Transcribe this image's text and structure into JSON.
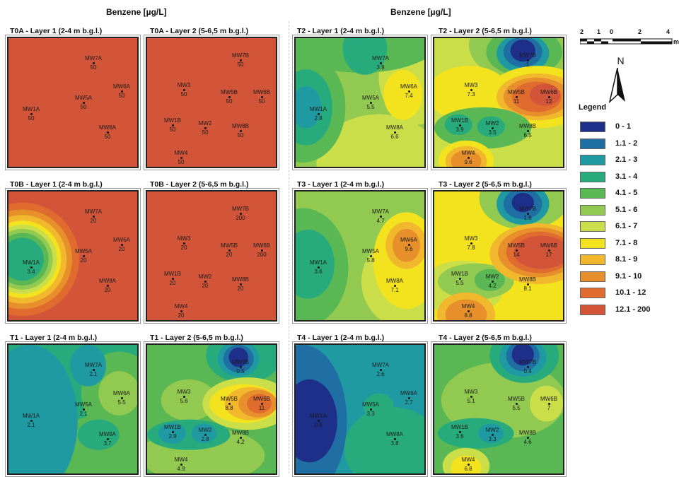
{
  "headings": {
    "left": "Benzene [µg/L]",
    "right": "Benzene [µg/L]"
  },
  "colors": {
    "c0": "#1e2f8a",
    "c1": "#1f6ea4",
    "c2": "#1f9aa3",
    "c3": "#27ab7d",
    "c4": "#59b754",
    "c5": "#92c950",
    "c6": "#cade4a",
    "c7": "#f3e21e",
    "c8": "#f2b82d",
    "c9": "#e7902b",
    "c10": "#df6b2e",
    "c11": "#d2553a"
  },
  "legend": {
    "title": "Legend",
    "items": [
      {
        "label": "0 - 1",
        "color": "#1e2f8a"
      },
      {
        "label": "1.1 - 2",
        "color": "#1f6ea4"
      },
      {
        "label": "2.1 - 3",
        "color": "#1f9aa3"
      },
      {
        "label": "3.1 - 4",
        "color": "#27ab7d"
      },
      {
        "label": "4.1 - 5",
        "color": "#59b754"
      },
      {
        "label": "5.1 - 6",
        "color": "#92c950"
      },
      {
        "label": "6.1 - 7",
        "color": "#cade4a"
      },
      {
        "label": "7.1 - 8",
        "color": "#f3e21e"
      },
      {
        "label": "8.1 - 9",
        "color": "#f2b82d"
      },
      {
        "label": "9.1 - 10",
        "color": "#e7902b"
      },
      {
        "label": "10.1 - 12",
        "color": "#df6b2e"
      },
      {
        "label": "12.1 - 200",
        "color": "#d2553a"
      }
    ]
  },
  "north": {
    "label": "N"
  },
  "scale": {
    "labels": [
      "2",
      "1",
      "0",
      "2",
      "4"
    ],
    "unit": "m"
  },
  "panels": [
    {
      "title": "T0A - Layer 1 (2-4 m b.g.l.)",
      "wells": [
        {
          "name": "MW7A",
          "value": "50"
        },
        {
          "name": "MW6A",
          "value": "50"
        },
        {
          "name": "MW5A",
          "value": "50"
        },
        {
          "name": "MW1A",
          "value": "50"
        },
        {
          "name": "MW8A",
          "value": "50"
        }
      ]
    },
    {
      "title": "T0A - Layer 2 (5-6,5 m b.g.l.)",
      "wells": [
        {
          "name": "MW7B",
          "value": "50"
        },
        {
          "name": "MW3",
          "value": "50"
        },
        {
          "name": "MW5B",
          "value": "50"
        },
        {
          "name": "MW6B",
          "value": "50"
        },
        {
          "name": "MW1B",
          "value": "50"
        },
        {
          "name": "MW2",
          "value": "50"
        },
        {
          "name": "MW8B",
          "value": "50"
        },
        {
          "name": "MW4",
          "value": "50"
        }
      ]
    },
    {
      "title": "T2 - Layer 1 (2-4 m b.g.l.)",
      "wells": [
        {
          "name": "MW7A",
          "value": "3.8"
        },
        {
          "name": "MW6A",
          "value": "7.4"
        },
        {
          "name": "MW5A",
          "value": "5.5"
        },
        {
          "name": "MW1A",
          "value": "2.8"
        },
        {
          "name": "MW8A",
          "value": "6.6"
        }
      ]
    },
    {
      "title": "T2 - Layer 2 (5-6,5 m b.g.l.)",
      "wells": [
        {
          "name": "MW7B",
          "value": "1"
        },
        {
          "name": "MW3",
          "value": "7.3"
        },
        {
          "name": "MW5B",
          "value": "11"
        },
        {
          "name": "MW6B",
          "value": "12"
        },
        {
          "name": "MW1B",
          "value": "3.9"
        },
        {
          "name": "MW2",
          "value": "3.5"
        },
        {
          "name": "MW8B",
          "value": "6.5"
        },
        {
          "name": "MW4",
          "value": "9.6"
        }
      ]
    },
    {
      "title": "T0B - Layer 1 (2-4 m b.g.l.)",
      "wells": [
        {
          "name": "MW7A",
          "value": "20"
        },
        {
          "name": "MW6A",
          "value": "20"
        },
        {
          "name": "MW5A",
          "value": "20"
        },
        {
          "name": "MW1A",
          "value": "3.4"
        },
        {
          "name": "MW8A",
          "value": "20"
        }
      ]
    },
    {
      "title": "T0B - Layer 2 (5-6,5 m b.g.l.)",
      "wells": [
        {
          "name": "MW7B",
          "value": "200"
        },
        {
          "name": "MW3",
          "value": "20"
        },
        {
          "name": "MW5B",
          "value": "20"
        },
        {
          "name": "MW6B",
          "value": "200"
        },
        {
          "name": "MW1B",
          "value": "20"
        },
        {
          "name": "MW2",
          "value": "20"
        },
        {
          "name": "MW8B",
          "value": "20"
        },
        {
          "name": "MW4",
          "value": "20"
        }
      ]
    },
    {
      "title": "T3 - Layer 1 (2-4 m b.g.l.)",
      "wells": [
        {
          "name": "MW7A",
          "value": "4.7"
        },
        {
          "name": "MW6A",
          "value": "9.6"
        },
        {
          "name": "MW5A",
          "value": "5.8"
        },
        {
          "name": "MW1A",
          "value": "3.6"
        },
        {
          "name": "MW8A",
          "value": "7.1"
        }
      ]
    },
    {
      "title": "T3 - Layer 2 (5-6,5 m b.g.l.)",
      "wells": [
        {
          "name": "MW7B",
          "value": "1.8"
        },
        {
          "name": "MW3",
          "value": "7.8"
        },
        {
          "name": "MW5B",
          "value": "14"
        },
        {
          "name": "MW6B",
          "value": "17"
        },
        {
          "name": "MW1B",
          "value": "5.5"
        },
        {
          "name": "MW2",
          "value": "4.2"
        },
        {
          "name": "MW8B",
          "value": "8.1"
        },
        {
          "name": "MW4",
          "value": "8.8"
        }
      ]
    },
    {
      "title": "T1 - Layer 1 (2-4 m b.g.l.)",
      "wells": [
        {
          "name": "MW7A",
          "value": "2.1"
        },
        {
          "name": "MW6A",
          "value": "5.5"
        },
        {
          "name": "MW5A",
          "value": "2.1"
        },
        {
          "name": "MW1A",
          "value": "2.1"
        },
        {
          "name": "MW8A",
          "value": "3.7"
        }
      ]
    },
    {
      "title": "T1 - Layer 2 (5-6,5 m b.g.l.)",
      "wells": [
        {
          "name": "MW7B",
          "value": "0.5"
        },
        {
          "name": "MW3",
          "value": "5.6"
        },
        {
          "name": "MW5B",
          "value": "8.8"
        },
        {
          "name": "MW6B",
          "value": "11"
        },
        {
          "name": "MW1B",
          "value": "2.9"
        },
        {
          "name": "MW2",
          "value": "2.8"
        },
        {
          "name": "MW8B",
          "value": "4.2"
        },
        {
          "name": "MW4",
          "value": "4.9"
        }
      ]
    },
    {
      "title": "T4 - Layer 1 (2-4 m b.g.l.)",
      "wells": [
        {
          "name": "MW7A",
          "value": "2.6"
        },
        {
          "name": "MW6A",
          "value": "2.7"
        },
        {
          "name": "MW5A",
          "value": "3.3"
        },
        {
          "name": "MW1A",
          "value": "0.5"
        },
        {
          "name": "MW8A",
          "value": "3.8"
        }
      ]
    },
    {
      "title": "T4 - Layer 2 (5-6,5 m b.g.l.)",
      "wells": [
        {
          "name": "MW7B",
          "value": "0.4"
        },
        {
          "name": "MW3",
          "value": "5.1"
        },
        {
          "name": "MW5B",
          "value": "5.5"
        },
        {
          "name": "MW6B",
          "value": "7"
        },
        {
          "name": "MW1B",
          "value": "3.6"
        },
        {
          "name": "MW2",
          "value": "3.3"
        },
        {
          "name": "MW8B",
          "value": "4.6"
        },
        {
          "name": "MW4",
          "value": "6.8"
        }
      ]
    }
  ]
}
